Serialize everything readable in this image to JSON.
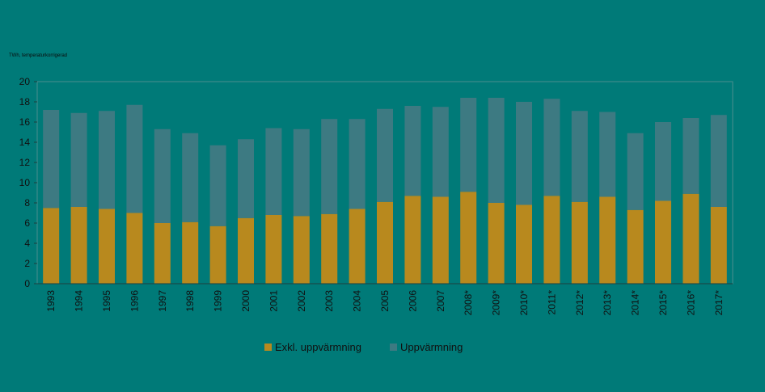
{
  "chart_data": {
    "type": "bar",
    "stacked": true,
    "unit_label": "TWh, temperaturkorrigerad",
    "categories": [
      "1993",
      "1994",
      "1995",
      "1996",
      "1997",
      "1998",
      "1999",
      "2000",
      "2001",
      "2002",
      "2003",
      "2004",
      "2005",
      "2006",
      "2007",
      "2008*",
      "2009*",
      "2010*",
      "2011*",
      "2012*",
      "2013*",
      "2014*",
      "2015*",
      "2016*",
      "2017*"
    ],
    "series": [
      {
        "name": "Exkl. uppvärmning",
        "color": "#b8891e",
        "values": [
          7.5,
          7.6,
          7.4,
          7.0,
          6.0,
          6.1,
          5.7,
          6.5,
          6.8,
          6.7,
          6.9,
          7.4,
          8.1,
          8.7,
          8.6,
          9.1,
          8.0,
          7.8,
          8.7,
          8.1,
          8.6,
          7.3,
          8.2,
          8.9,
          7.6
        ]
      },
      {
        "name": "Uppvärmning",
        "color": "#3d7a82",
        "values": [
          9.7,
          9.3,
          9.7,
          10.7,
          9.3,
          8.8,
          8.0,
          7.8,
          8.6,
          8.6,
          9.4,
          8.9,
          9.2,
          8.9,
          8.9,
          9.3,
          10.4,
          10.2,
          9.6,
          9.0,
          8.4,
          7.6,
          7.8,
          7.5,
          9.1
        ]
      }
    ],
    "ylim": [
      0,
      20
    ],
    "yticks": [
      0,
      2,
      4,
      6,
      8,
      10,
      12,
      14,
      16,
      18,
      20
    ],
    "grid": false,
    "legend": "bottom-center",
    "axis_color": "#4a8e8e"
  }
}
